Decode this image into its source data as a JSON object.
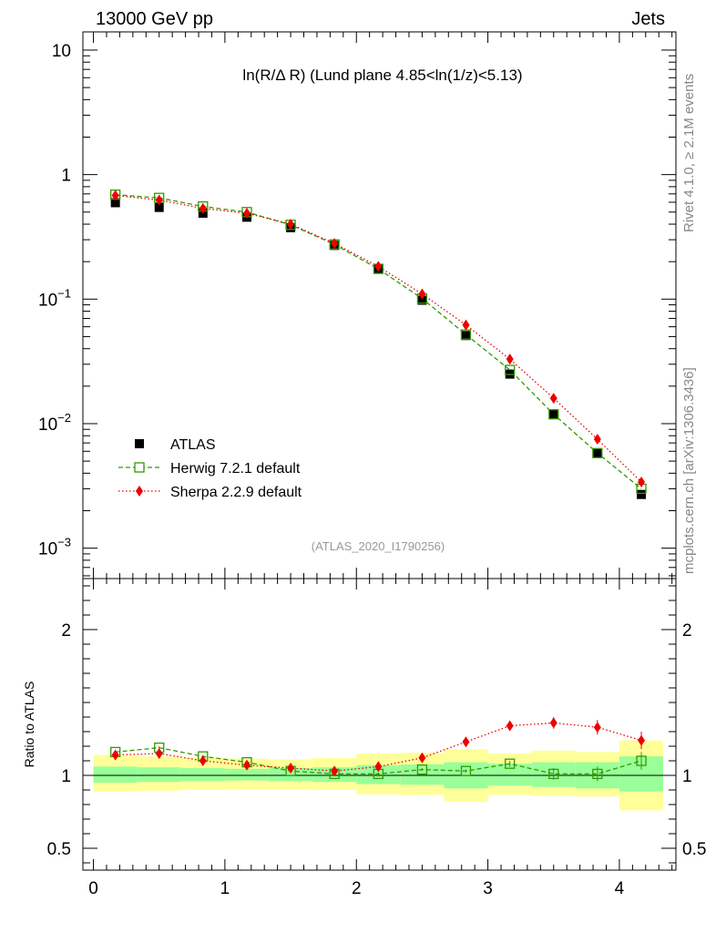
{
  "header": {
    "energy": "13000 GeV pp",
    "process": "Jets"
  },
  "side_labels": {
    "rivet": "Rivet 4.1.0, ≥ 2.1M events",
    "site": "mcplots.cern.ch [arXiv:1306.3436]"
  },
  "colors": {
    "data": "#000000",
    "herwig": "#339900",
    "sherpa": "#ee0000",
    "band_green": "#99ff99",
    "band_yellow": "#ffff99"
  },
  "chart_data": [
    {
      "type": "scatter",
      "panel": "main",
      "title": "ln(R/Δ R) (Lund plane 4.85<ln(1/z)<5.13)",
      "analysis": "(ATLAS_2020_I1790256)",
      "yscale": "log",
      "xlim": [
        -0.08,
        4.43
      ],
      "ylim": [
        0.00057,
        14
      ],
      "y_ticks": [
        {
          "value": 10,
          "base": "10",
          "exp": ""
        },
        {
          "value": 1,
          "base": "1",
          "exp": ""
        },
        {
          "value": 0.1,
          "base": "10",
          "exp": "−1"
        },
        {
          "value": 0.01,
          "base": "10",
          "exp": "−2"
        },
        {
          "value": 0.001,
          "base": "10",
          "exp": "−3"
        }
      ],
      "x": [
        0.167,
        0.5,
        0.833,
        1.167,
        1.5,
        1.833,
        2.167,
        2.5,
        2.833,
        3.167,
        3.5,
        3.833,
        4.167
      ],
      "series": [
        {
          "name": "ATLAS",
          "key": "data",
          "values": [
            0.595,
            0.545,
            0.49,
            0.455,
            0.375,
            0.27,
            0.175,
            0.098,
            0.051,
            0.025,
            0.0118,
            0.0058,
            0.0027
          ]
        },
        {
          "name": "Herwig 7.2.1 default",
          "key": "herwig",
          "values": [
            0.69,
            0.65,
            0.555,
            0.5,
            0.395,
            0.275,
            0.175,
            0.101,
            0.052,
            0.027,
            0.0119,
            0.0058,
            0.003
          ]
        },
        {
          "name": "Sherpa 2.2.9 default",
          "key": "sherpa",
          "values": [
            0.68,
            0.625,
            0.535,
            0.49,
            0.4,
            0.28,
            0.183,
            0.11,
            0.062,
            0.033,
            0.016,
            0.0075,
            0.0034
          ]
        }
      ],
      "legend": [
        "ATLAS",
        "Herwig 7.2.1 default",
        "Sherpa 2.2.9 default"
      ]
    },
    {
      "type": "scatter",
      "panel": "ratio",
      "ylabel": "Ratio to ATLAS",
      "xlim": [
        -0.08,
        4.43
      ],
      "ylim": [
        0.35,
        2.35
      ],
      "y_ticks": [
        0.5,
        1,
        2
      ],
      "y_tick_labels": [
        "0.5",
        "1",
        "2"
      ],
      "x_ticks": [
        0,
        1,
        2,
        3,
        4
      ],
      "x_tick_labels": [
        "0",
        "1",
        "2",
        "3",
        "4"
      ],
      "x": [
        0.167,
        0.5,
        0.833,
        1.167,
        1.5,
        1.833,
        2.167,
        2.5,
        2.833,
        3.167,
        3.5,
        3.833,
        4.167
      ],
      "bin_edges": [
        0,
        0.333,
        0.667,
        1,
        1.333,
        1.667,
        2,
        2.333,
        2.667,
        3,
        3.333,
        3.667,
        4,
        4.333
      ],
      "band_green": [
        [
          0.95,
          1.06
        ],
        [
          0.955,
          1.055
        ],
        [
          0.96,
          1.05
        ],
        [
          0.965,
          1.045
        ],
        [
          0.96,
          1.05
        ],
        [
          0.955,
          1.055
        ],
        [
          0.94,
          1.07
        ],
        [
          0.935,
          1.075
        ],
        [
          0.91,
          1.09
        ],
        [
          0.93,
          1.08
        ],
        [
          0.92,
          1.09
        ],
        [
          0.91,
          1.09
        ],
        [
          0.89,
          1.13
        ]
      ],
      "band_yellow": [
        [
          0.89,
          1.14
        ],
        [
          0.895,
          1.13
        ],
        [
          0.9,
          1.12
        ],
        [
          0.905,
          1.115
        ],
        [
          0.905,
          1.11
        ],
        [
          0.9,
          1.12
        ],
        [
          0.87,
          1.15
        ],
        [
          0.865,
          1.155
        ],
        [
          0.82,
          1.18
        ],
        [
          0.865,
          1.15
        ],
        [
          0.86,
          1.17
        ],
        [
          0.855,
          1.16
        ],
        [
          0.76,
          1.24
        ]
      ],
      "series": [
        {
          "name": "Herwig 7.2.1 default",
          "key": "herwig",
          "values": [
            1.16,
            1.19,
            1.13,
            1.09,
            1.03,
            1.01,
            1.01,
            1.04,
            1.03,
            1.08,
            1.01,
            1.01,
            1.1
          ],
          "errors": [
            0.01,
            0.01,
            0.01,
            0.01,
            0.01,
            0.01,
            0.01,
            0.01,
            0.01,
            0.02,
            0.04,
            0.05,
            0.06
          ]
        },
        {
          "name": "Sherpa 2.2.9 default",
          "key": "sherpa",
          "values": [
            1.14,
            1.15,
            1.1,
            1.07,
            1.05,
            1.03,
            1.06,
            1.12,
            1.23,
            1.34,
            1.36,
            1.33,
            1.24
          ],
          "errors": [
            0.01,
            0.01,
            0.01,
            0.01,
            0.01,
            0.01,
            0.01,
            0.01,
            0.02,
            0.02,
            0.04,
            0.05,
            0.06
          ]
        }
      ]
    }
  ]
}
